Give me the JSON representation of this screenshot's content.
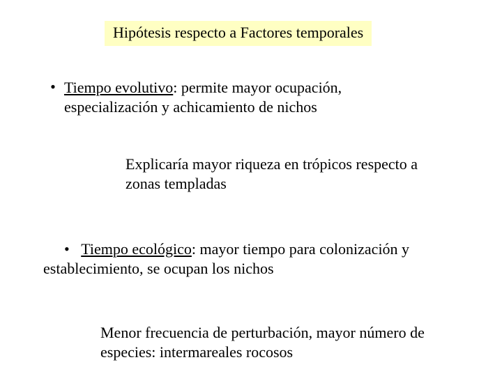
{
  "title": "Hipótesis respecto a Factores temporales",
  "bullet1": {
    "label_u": "Tiempo evolutivo",
    "rest": ": permite mayor ocupación, especialización y achicamiento de nichos"
  },
  "expl1": "Explicaría mayor riqueza en trópicos respecto a zonas templadas",
  "bullet2": {
    "label_u": "Tiempo ecológico",
    "rest": ": mayor tiempo para colonización y establecimiento, se ocupan los nichos"
  },
  "expl2": "Menor frecuencia de perturbación, mayor número de especies: intermareales rocosos",
  "colors": {
    "title_bg": "#ffffc3",
    "page_bg": "#ffffff",
    "text": "#000000"
  },
  "typography": {
    "family": "Times New Roman",
    "body_size_pt": 16,
    "title_size_pt": 16
  }
}
